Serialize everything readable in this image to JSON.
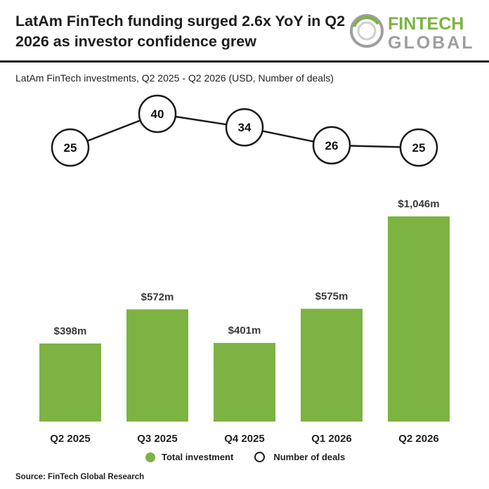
{
  "header": {
    "title": "LatAm FinTech funding surged 2.6x YoY in Q2 2026 as investor confidence grew",
    "logo_line1": "FINTECH",
    "logo_line2": "GLOBAL"
  },
  "subtitle": "LatAm FinTech investments, Q2 2025 - Q2 2026 (USD, Number of deals)",
  "legend": {
    "investment": "Total investment",
    "deals": "Number of deals"
  },
  "source": "Source: FinTech Global Research",
  "colors": {
    "bar": "#7cb342",
    "line": "#1a1a1a",
    "logo_green": "#7cb342",
    "logo_grey": "#9e9e9e"
  },
  "chart_data": {
    "type": "bar",
    "categories": [
      "Q2 2025",
      "Q3 2025",
      "Q4 2025",
      "Q1 2026",
      "Q2 2026"
    ],
    "series": [
      {
        "name": "Total investment",
        "values": [
          398,
          572,
          401,
          575,
          1046
        ],
        "labels": [
          "$398m",
          "$572m",
          "$401m",
          "$575m",
          "$1,046m"
        ]
      },
      {
        "name": "Number of deals",
        "type": "line",
        "values": [
          25,
          40,
          34,
          26,
          25
        ]
      }
    ],
    "legend": "bottom"
  }
}
